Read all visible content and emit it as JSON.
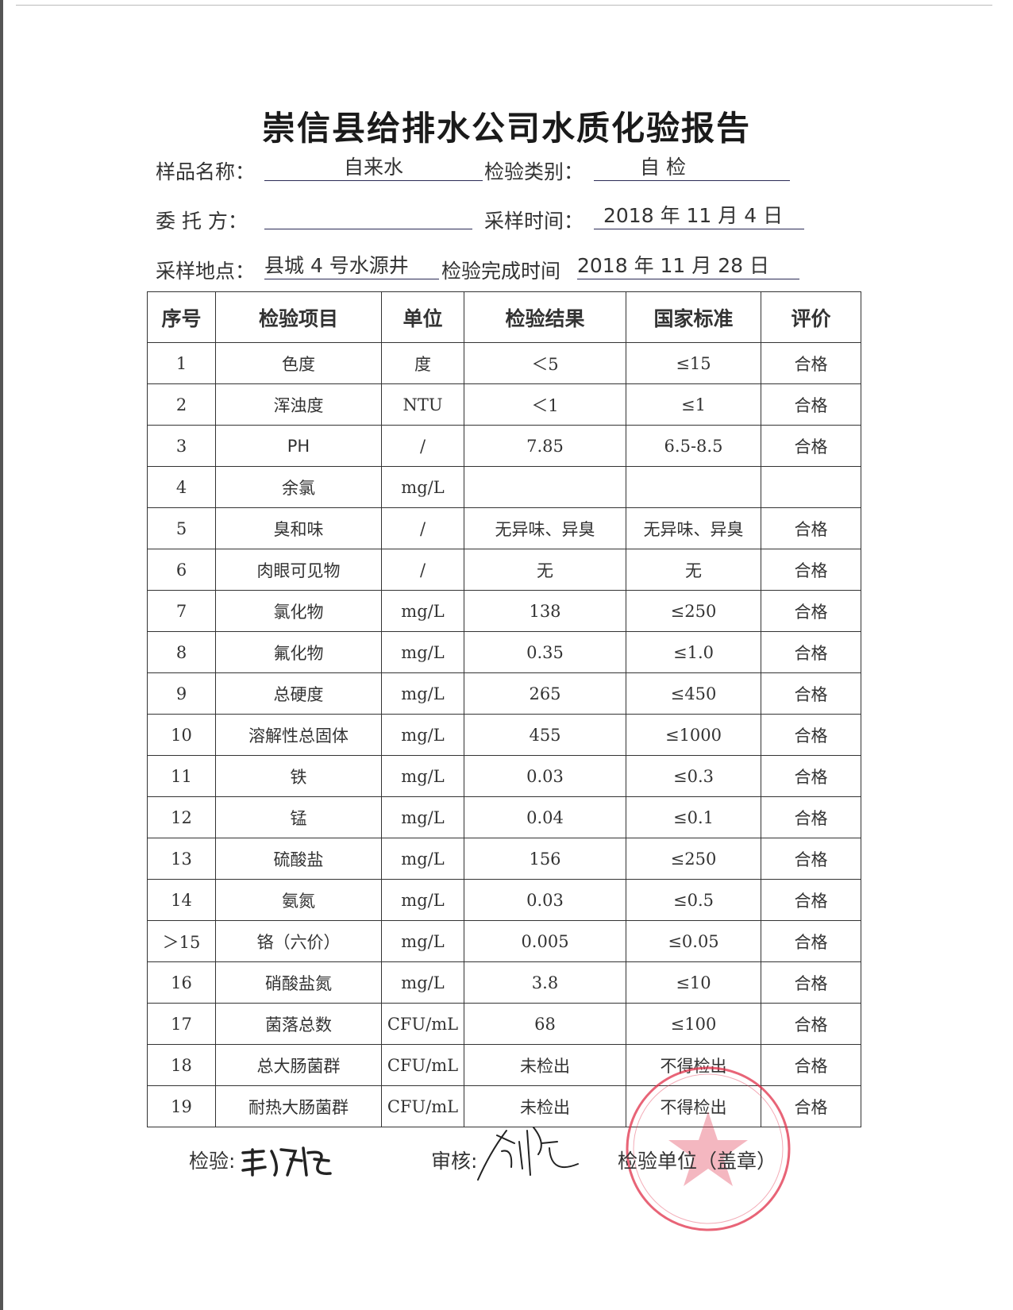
{
  "title": "崇信县给排水公司水质化验报告",
  "info": {
    "sample_name_label": "样品名称：",
    "sample_name": "自来水",
    "test_type_label": "检验类别：",
    "test_type": "自 检",
    "client_label": "委 托 方：",
    "client": "",
    "sampling_time_label": "采样时间：",
    "sampling_time": "2018 年 11 月 4 日",
    "location_label": "采样地点：",
    "location": "县城 4 号水源井",
    "completion_label": "检验完成时间",
    "completion_time": "2018 年 11 月 28 日"
  },
  "table": {
    "headers": [
      "序号",
      "检验项目",
      "单位",
      "检验结果",
      "国家标准",
      "评价"
    ],
    "rows": [
      [
        "1",
        "色度",
        "度",
        "＜5",
        "≤15",
        "合格"
      ],
      [
        "2",
        "浑浊度",
        "NTU",
        "＜1",
        "≤1",
        "合格"
      ],
      [
        "3",
        "PH",
        "/",
        "7.85",
        "6.5-8.5",
        "合格"
      ],
      [
        "4",
        "余氯",
        "mg/L",
        "",
        "",
        ""
      ],
      [
        "5",
        "臭和味",
        "/",
        "无异味、异臭",
        "无异味、异臭",
        "合格"
      ],
      [
        "6",
        "肉眼可见物",
        "/",
        "无",
        "无",
        "合格"
      ],
      [
        "7",
        "氯化物",
        "mg/L",
        "138",
        "≤250",
        "合格"
      ],
      [
        "8",
        "氟化物",
        "mg/L",
        "0.35",
        "≤1.0",
        "合格"
      ],
      [
        "9",
        "总硬度",
        "mg/L",
        "265",
        "≤450",
        "合格"
      ],
      [
        "10",
        "溶解性总固体",
        "mg/L",
        "455",
        "≤1000",
        "合格"
      ],
      [
        "11",
        "铁",
        "mg/L",
        "0.03",
        "≤0.3",
        "合格"
      ],
      [
        "12",
        "锰",
        "mg/L",
        "0.04",
        "≤0.1",
        "合格"
      ],
      [
        "13",
        "硫酸盐",
        "mg/L",
        "156",
        "≤250",
        "合格"
      ],
      [
        "14",
        "氨氮",
        "mg/L",
        "0.03",
        "≤0.5",
        "合格"
      ],
      [
        "＞15",
        "铬（六价）",
        "mg/L",
        "0.005",
        "≤0.05",
        "合格"
      ],
      [
        "16",
        "硝酸盐氮",
        "mg/L",
        "3.8",
        "≤10",
        "合格"
      ],
      [
        "17",
        "菌落总数",
        "CFU/mL",
        "68",
        "≤100",
        "合格"
      ],
      [
        "18",
        "总大肠菌群",
        "CFU/mL",
        "未检出",
        "不得检出",
        "合格"
      ],
      [
        "19",
        "耐热大肠菌群",
        "CFU/mL",
        "未检出",
        "不得检出",
        "合格"
      ]
    ]
  },
  "footer": {
    "inspector_label": "检验:",
    "reviewer_label": "审核:",
    "unit_label": "检验单位（盖章）"
  },
  "colors": {
    "stamp": "#e0304a",
    "underline": "#2a2a55"
  }
}
